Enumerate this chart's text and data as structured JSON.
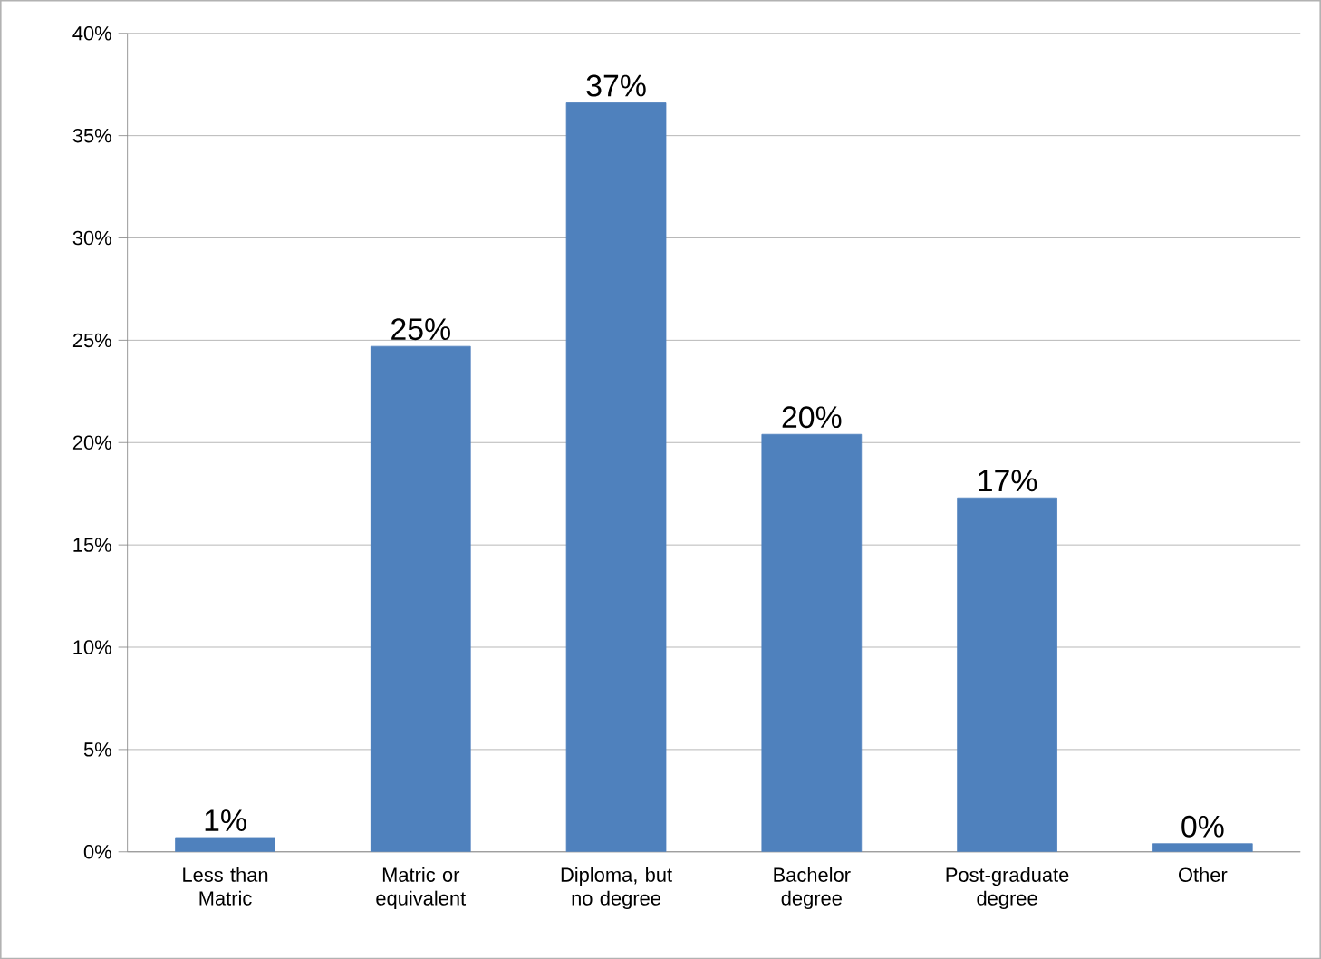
{
  "chart_data": {
    "type": "bar",
    "categories": [
      "Less than Matric",
      "Matric or equivalent",
      "Diploma, but no degree",
      "Bachelor degree",
      "Post-graduate degree",
      "Other"
    ],
    "values": [
      0.7,
      24.7,
      36.6,
      20.4,
      17.3,
      0.4
    ],
    "value_labels": [
      "1%",
      "25%",
      "37%",
      "20%",
      "17%",
      "0%"
    ],
    "color": "#4f81bd",
    "ylim": [
      0,
      40
    ],
    "yticks": [
      {
        "value": 0,
        "label": "0%"
      },
      {
        "value": 5,
        "label": "5%"
      },
      {
        "value": 10,
        "label": "10%"
      },
      {
        "value": 15,
        "label": "15%"
      },
      {
        "value": 20,
        "label": "20%"
      },
      {
        "value": 25,
        "label": "25%"
      },
      {
        "value": 30,
        "label": "30%"
      },
      {
        "value": 35,
        "label": "35%"
      },
      {
        "value": 40,
        "label": "40%"
      }
    ],
    "grid": "y"
  }
}
